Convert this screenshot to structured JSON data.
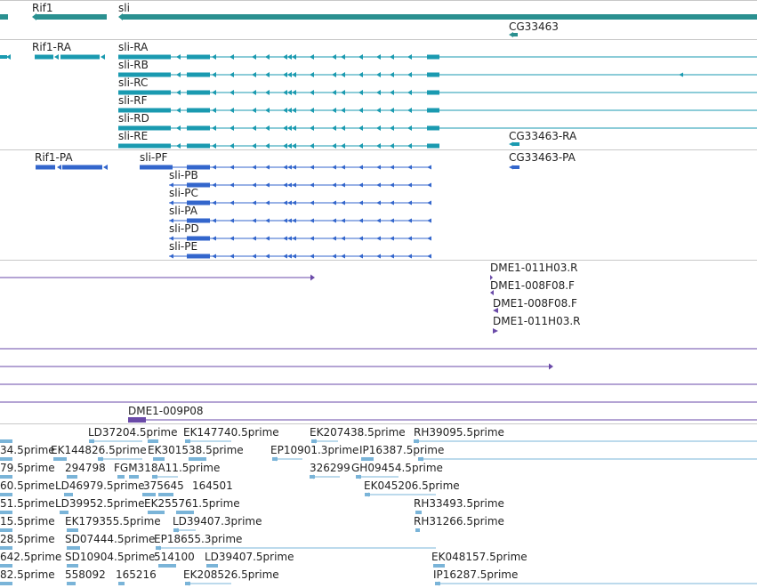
{
  "colors": {
    "gene": "#2a9090",
    "transcript": "#1a9ab0",
    "protein": "#3366cc",
    "clone": "#6a4aa8",
    "est": "#7ab4d8",
    "separator": "#c8c8c8"
  },
  "genes": {
    "rif1": "Rif1",
    "sli": "sli",
    "cg33463": "CG33463"
  },
  "transcripts": {
    "rif1_ra": "Rif1-RA",
    "sli_ra": "sli-RA",
    "sli_rb": "sli-RB",
    "sli_rc": "sli-RC",
    "sli_rf": "sli-RF",
    "sli_rd": "sli-RD",
    "sli_re": "sli-RE",
    "cg33463_ra": "CG33463-RA"
  },
  "proteins": {
    "rif1_pa": "Rif1-PA",
    "sli_pf": "sli-PF",
    "sli_pb": "sli-PB",
    "sli_pc": "sli-PC",
    "sli_pa": "sli-PA",
    "sli_pd": "sli-PD",
    "sli_pe": "sli-PE",
    "cg33463_pa": "CG33463-PA"
  },
  "clones": {
    "dme1_011h03_r_a": "DME1-011H03.R",
    "dme1_008f08_f_a": "DME1-008F08.F",
    "dme1_008f08_f_b": "DME1-008F08.F",
    "dme1_011h03_r_b": "DME1-011H03.R",
    "dme1_009p08": "DME1-009P08"
  },
  "ests": [
    "LD37204.5prime",
    "EK147740.5prime",
    "EK207438.5prime",
    "RH39095.5prime",
    "34.5prime",
    "EK144826.5prime",
    "EK301538.5prime",
    "EP10901.3prime",
    "IP16387.5prime",
    "79.5prime",
    "294798",
    "FGM318A11.5prime",
    "326299",
    "GH09454.5prime",
    "60.5prime",
    "LD46979.5prime",
    "375645",
    "164501",
    "EK045206.5prime",
    "51.5prime",
    "LD39952.5prime",
    "EK255761.5prime",
    "RH33493.5prime",
    "15.5prime",
    "EK179355.5prime",
    "LD39407.3prime",
    "RH31266.5prime",
    "28.5prime",
    "SD07444.5prime",
    "EP18655.3prime",
    "642.5prime",
    "SD10904.5prime",
    "514100",
    "LD39407.5prime",
    "EK048157.5prime",
    "82.5prime",
    "558092",
    "165216",
    "EK208526.5prime",
    "IP16287.5prime"
  ]
}
